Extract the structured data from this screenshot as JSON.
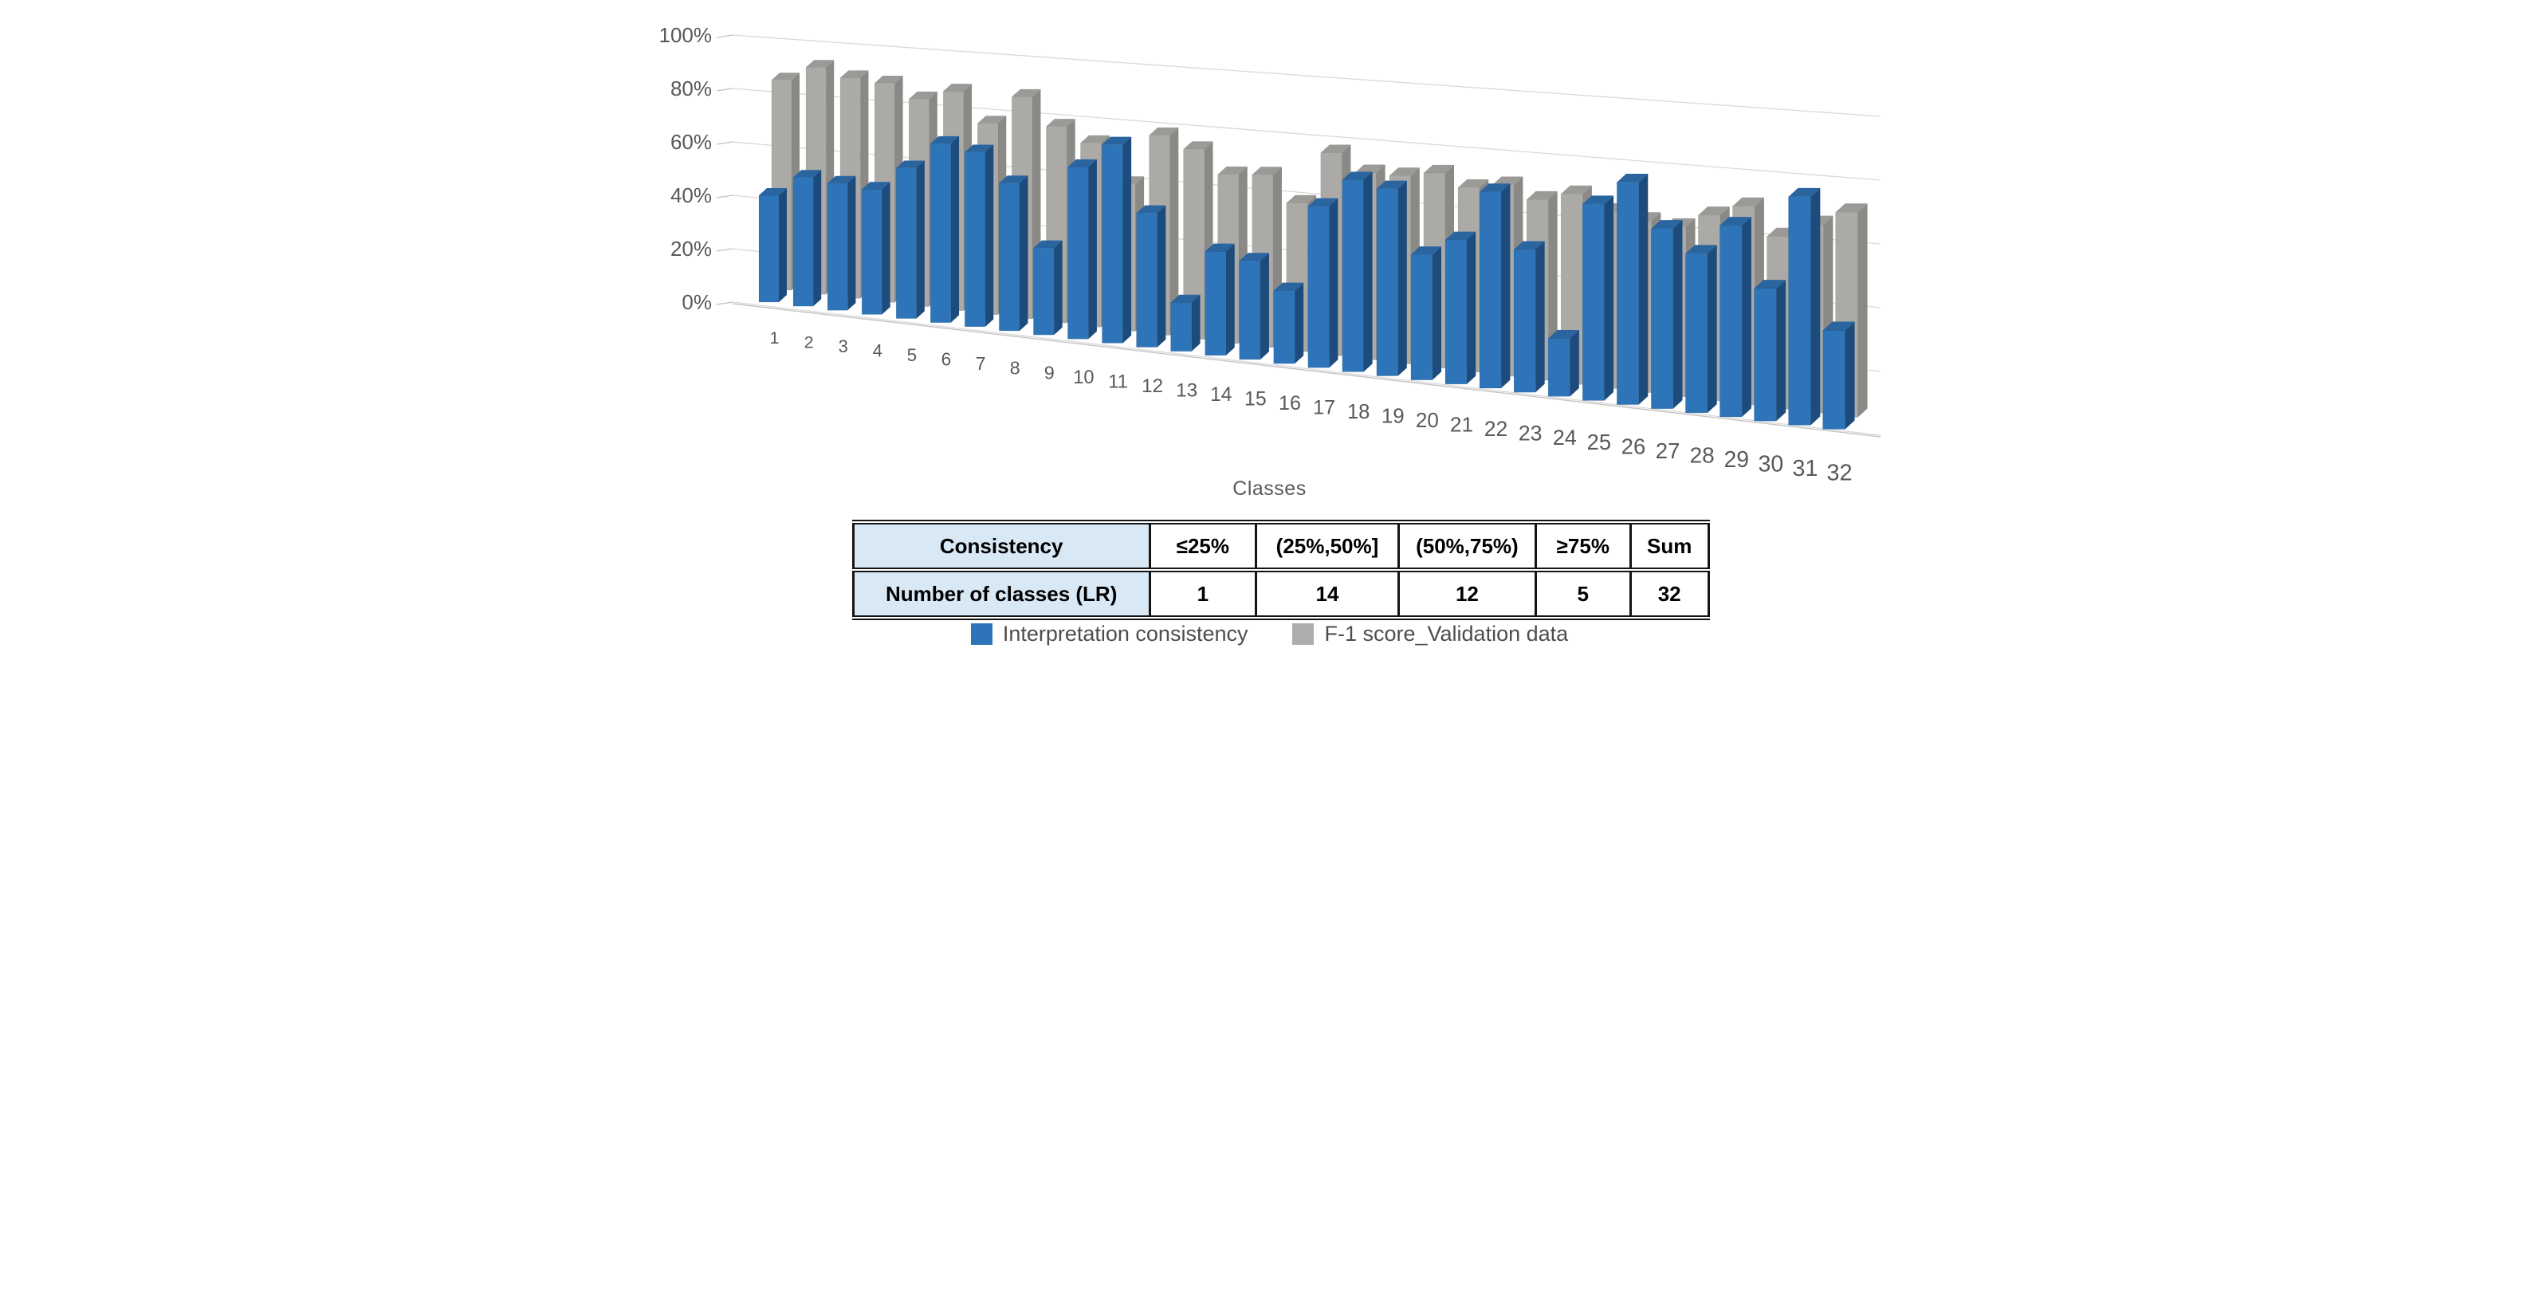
{
  "colors": {
    "blue_front": "#2E74B8",
    "blue_top": "#2A65A0",
    "blue_side": "#1D4C7C",
    "gray_front": "#ABAAA7",
    "gray_top": "#9B9A97",
    "gray_side": "#8A8986",
    "gridline": "#D9D9D9",
    "floor_edge": "#C6C4C4",
    "tick": "#BFBFBF",
    "axis_text": "#595959",
    "table_fill": "#D9E8F5",
    "table_border": "#141414",
    "legend_text": "#4d4d4d"
  },
  "chart_data": {
    "type": "bar",
    "projection": "3d-perspective",
    "title": "",
    "xlabel": "Classes",
    "ylabel": "",
    "ylim": [
      0,
      100
    ],
    "grid": true,
    "legend_position": "bottom",
    "y_ticks": [
      "0%",
      "20%",
      "40%",
      "60%",
      "80%",
      "100%"
    ],
    "categories": [
      "1",
      "2",
      "3",
      "4",
      "5",
      "6",
      "7",
      "8",
      "9",
      "10",
      "11",
      "12",
      "13",
      "14",
      "15",
      "16",
      "17",
      "18",
      "19",
      "20",
      "21",
      "22",
      "23",
      "24",
      "25",
      "26",
      "27",
      "28",
      "29",
      "30",
      "31",
      "32"
    ],
    "series": [
      {
        "name": "Interpretation consistency",
        "color": "#2E74B8",
        "values": [
          40,
          48,
          47,
          46,
          55,
          65,
          63,
          53,
          31,
          61,
          70,
          47,
          17,
          36,
          34,
          25,
          55,
          65,
          63,
          42,
          48,
          65,
          47,
          19,
          64,
          72,
          58,
          51,
          61,
          42,
          72,
          31
        ]
      },
      {
        "name": "F-1 score_Validation data",
        "color": "#ABAAA7",
        "values": [
          82,
          88,
          85,
          84,
          79,
          83,
          72,
          83,
          73,
          68,
          54,
          73,
          69,
          61,
          62,
          53,
          72,
          66,
          66,
          68,
          64,
          66,
          62,
          65,
          60,
          58,
          57,
          62,
          66,
          57,
          62,
          67
        ]
      }
    ]
  },
  "table": {
    "rows": [
      {
        "cells": [
          "Consistency",
          "≤25%",
          "(25%,50%]",
          "(50%,75%)",
          "≥75%",
          "Sum"
        ]
      },
      {
        "cells": [
          "Number of classes (LR)",
          "1",
          "14",
          "12",
          "5",
          "32"
        ]
      }
    ]
  },
  "legend": {
    "items": [
      {
        "label": "Interpretation consistency",
        "color": "#2E74B8"
      },
      {
        "label": "F-1 score_Validation data",
        "color": "#ADADAD"
      }
    ]
  }
}
